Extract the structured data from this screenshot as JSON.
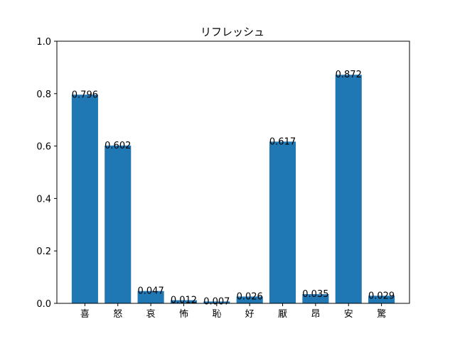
{
  "chart_data": {
    "type": "bar",
    "title": "リフレッシュ",
    "xlabel": "",
    "ylabel": "",
    "categories": [
      "喜",
      "怒",
      "哀",
      "怖",
      "恥",
      "好",
      "厭",
      "昂",
      "安",
      "驚"
    ],
    "values": [
      0.796,
      0.602,
      0.047,
      0.012,
      0.007,
      0.026,
      0.617,
      0.035,
      0.872,
      0.029
    ],
    "value_labels": [
      "0.796",
      "0.602",
      "0.047",
      "0.012",
      "0.007",
      "0.026",
      "0.617",
      "0.035",
      "0.872",
      "0.029"
    ],
    "ylim": [
      0,
      1.0
    ],
    "yticks": [
      "0.0",
      "0.2",
      "0.4",
      "0.6",
      "0.8",
      "1.0"
    ],
    "grid": false,
    "bar_color": "#1f77b4"
  }
}
